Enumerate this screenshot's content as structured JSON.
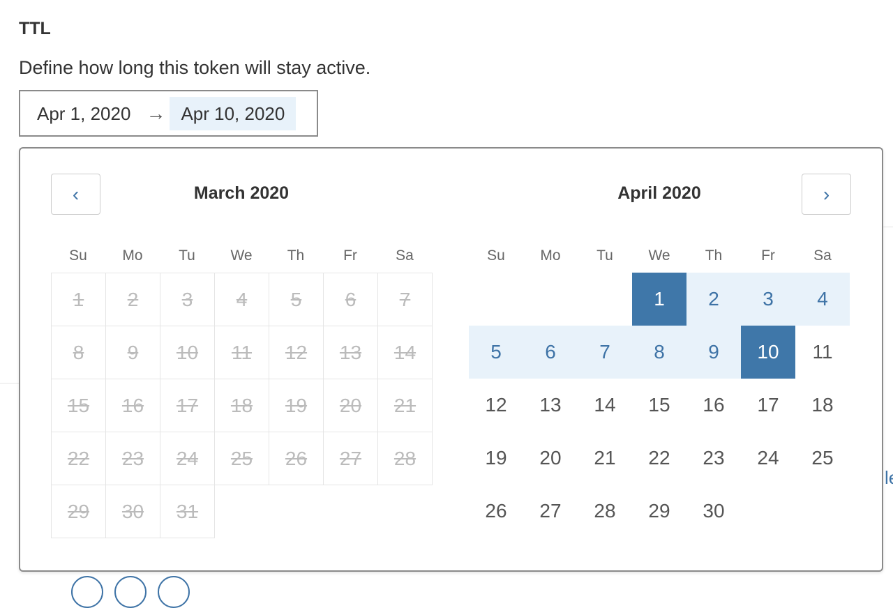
{
  "section": {
    "title": "TTL",
    "description": "Define how long this token will stay active."
  },
  "range": {
    "start": "Apr 1, 2020",
    "end": "Apr 10, 2020",
    "arrow": "→"
  },
  "calendar": {
    "prev_icon": "chevron-left-icon",
    "next_icon": "chevron-right-icon",
    "weekdays": [
      "Su",
      "Mo",
      "Tu",
      "We",
      "Th",
      "Fr",
      "Sa"
    ],
    "left": {
      "title": "March 2020",
      "offset": 0,
      "days": 31,
      "disabled": true
    },
    "right": {
      "title": "April 2020",
      "offset": 3,
      "days": 30,
      "selected_start": 1,
      "selected_end": 10
    },
    "colors": {
      "accent": "#3f77a9",
      "range": "#e8f2fa"
    }
  }
}
